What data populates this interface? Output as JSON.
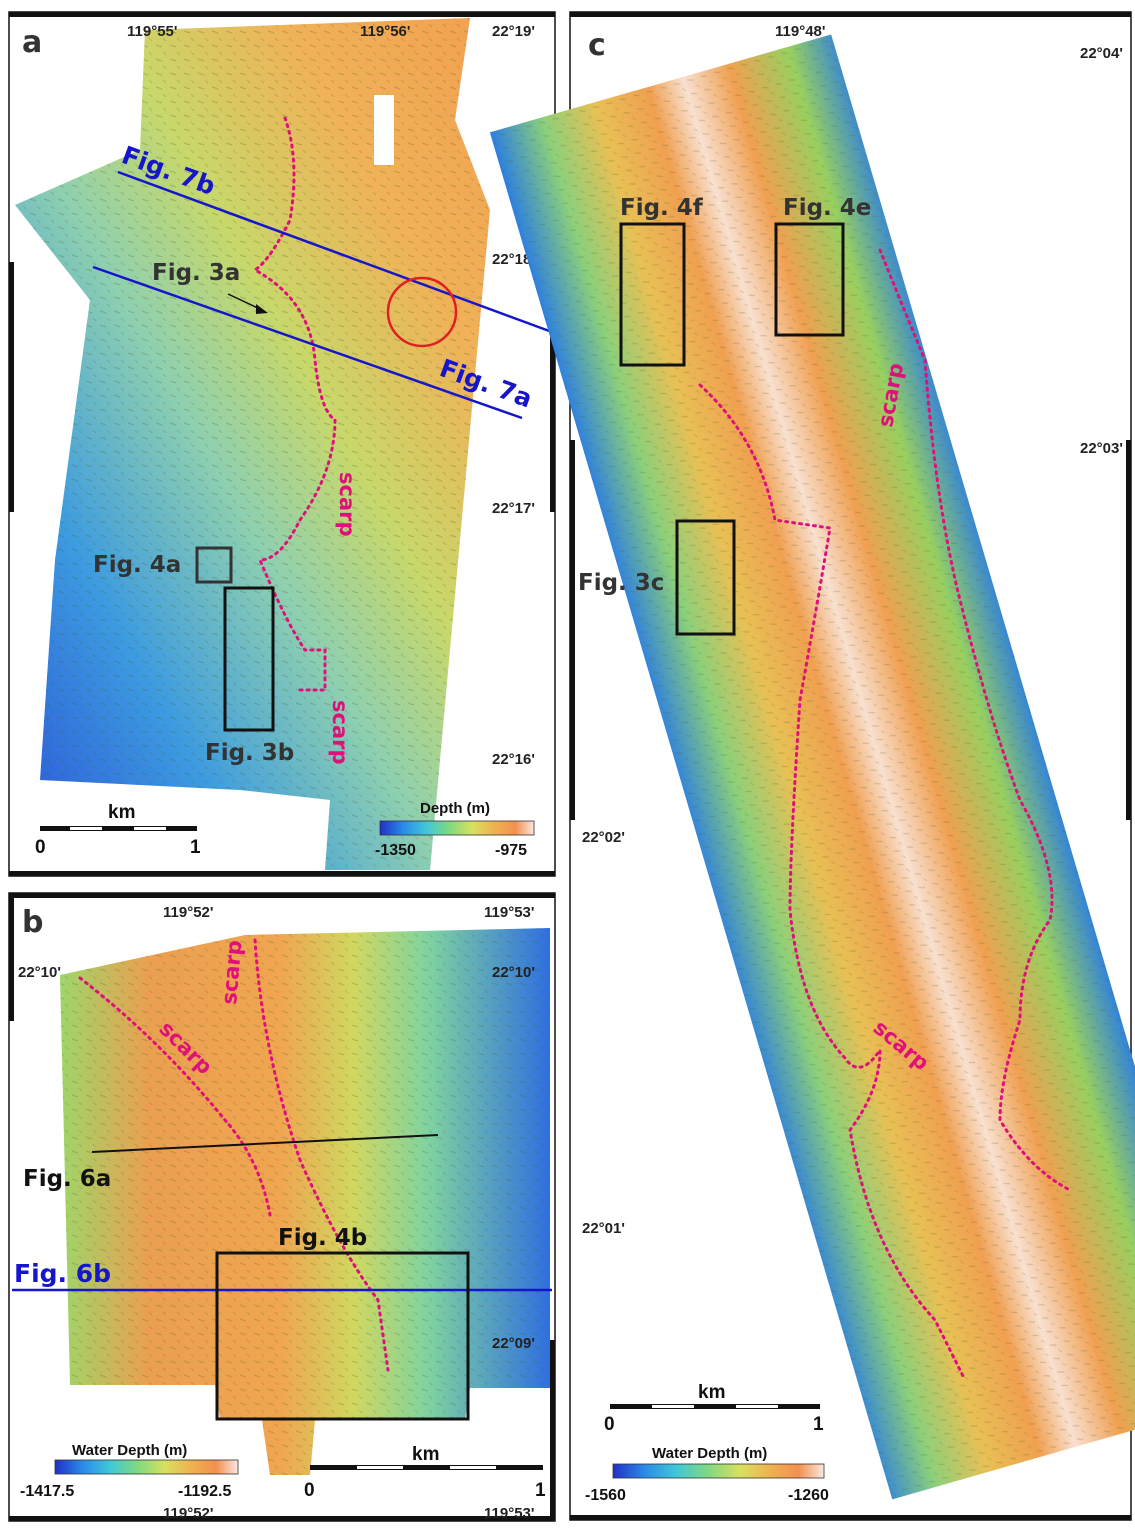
{
  "colors": {
    "deep": "#1e4fd6",
    "mid": "#8ccf6a",
    "shallow": "#f0a048",
    "profile_blue": "#1515cc",
    "scarp_magenta": "#e0107a",
    "box_black": "#111111",
    "circle_red": "#e02020"
  },
  "panel_a": {
    "letter": "a",
    "lon_labels": [
      "119°55'",
      "119°56'"
    ],
    "lat_labels": [
      "22°19'",
      "22°18'",
      "22°17'",
      "22°16'"
    ],
    "labels": {
      "fig7b": "Fig. 7b",
      "fig7a": "Fig. 7a",
      "fig3a": "Fig. 3a",
      "fig4a": "Fig. 4a",
      "fig3b": "Fig. 3b",
      "scarp1": "scarp",
      "scarp2": "scarp"
    },
    "legend": {
      "title": "Depth (m)",
      "min": "-1350",
      "max": "-975"
    },
    "scale": {
      "unit": "km",
      "start": "0",
      "end": "1"
    }
  },
  "panel_b": {
    "letter": "b",
    "lon_labels": [
      "119°52'",
      "119°53'"
    ],
    "lon_labels_bottom": [
      "119°52'",
      "119°53'"
    ],
    "lat_labels_left": [
      "22°10'"
    ],
    "lat_labels_right": [
      "22°10'",
      "22°09'"
    ],
    "labels": {
      "fig6a": "Fig. 6a",
      "fig6b": "Fig. 6b",
      "fig4b": "Fig. 4b",
      "scarp1": "scarp",
      "scarp2": "scarp"
    },
    "legend": {
      "title": "Water Depth (m)",
      "min": "-1417.5",
      "max": "-1192.5"
    },
    "scale": {
      "unit": "km",
      "start": "0",
      "end": "1"
    }
  },
  "panel_c": {
    "letter": "c",
    "lon_labels": [
      "119°48'"
    ],
    "lat_labels_right": [
      "22°04'",
      "22°03'"
    ],
    "lat_labels_left": [
      "22°02'",
      "22°01'"
    ],
    "labels": {
      "fig4f": "Fig. 4f",
      "fig4e": "Fig. 4e",
      "fig3c": "Fig. 3c",
      "scarp1": "scarp",
      "scarp2": "scarp"
    },
    "legend": {
      "title": "Water Depth (m)",
      "min": "-1560",
      "max": "-1260"
    },
    "scale": {
      "unit": "km",
      "start": "0",
      "end": "1"
    }
  }
}
